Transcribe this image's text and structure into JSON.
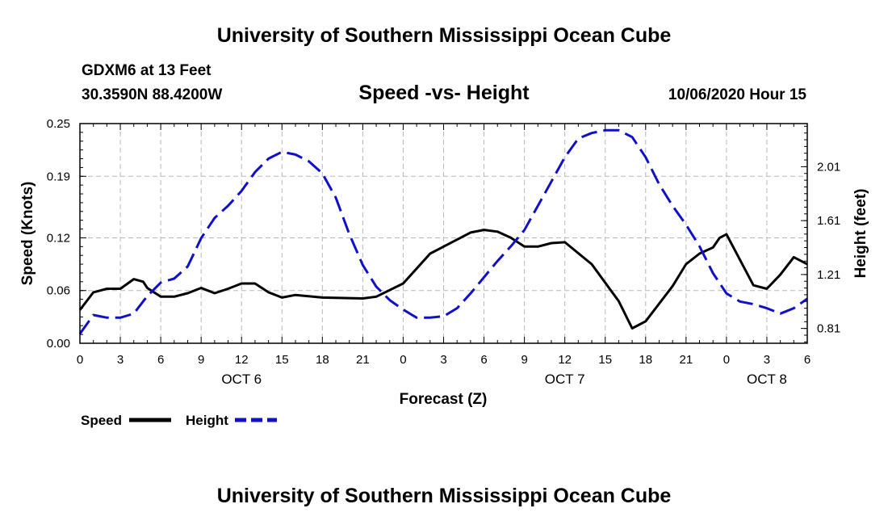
{
  "page": {
    "title_top": "University of Southern Mississippi Ocean Cube",
    "title_bottom": "University of Southern Mississippi Ocean Cube",
    "station": "GDXM6 at 13 Feet",
    "location": "30.3590N 88.4200W",
    "subtitle": "Speed -vs- Height",
    "datetime": "10/06/2020 Hour 15"
  },
  "colors": {
    "speed": "#000000",
    "height": "#1010c8",
    "grid": "#b8b8b8"
  },
  "chart_data": {
    "type": "line",
    "title": "Speed -vs- Height",
    "xlabel": "Forecast (Z)",
    "ylabel": "Speed (Knots)",
    "y2label": "Height (feet)",
    "xlim": [
      0,
      54
    ],
    "ylim": [
      0,
      0.25
    ],
    "y2lim": [
      0.7,
      2.33
    ],
    "grid": true,
    "x_tick_positions": [
      0,
      3,
      6,
      9,
      12,
      15,
      18,
      21,
      24,
      27,
      30,
      33,
      36,
      39,
      42,
      45,
      48,
      51,
      54
    ],
    "x_tick_labels": [
      "0",
      "3",
      "6",
      "9",
      "12",
      "15",
      "18",
      "21",
      "0",
      "3",
      "6",
      "9",
      "12",
      "15",
      "18",
      "21",
      "0",
      "3",
      "6"
    ],
    "y_ticks": [
      0,
      0.06,
      0.12,
      0.19,
      0.25
    ],
    "y_tick_labels": [
      "0.00",
      "0.06",
      "0.12",
      "0.19",
      "0.25"
    ],
    "y2_ticks": [
      0.81,
      1.21,
      1.61,
      2.01
    ],
    "y2_tick_labels": [
      "0.81",
      "1.21",
      "1.61",
      "2.01"
    ],
    "day_labels": [
      {
        "x": 12,
        "label": "OCT 6"
      },
      {
        "x": 36,
        "label": "OCT 7"
      },
      {
        "x": 51,
        "label": "OCT 8"
      }
    ],
    "legend_position": "bottom-left",
    "series": [
      {
        "name": "Speed",
        "axis": "left",
        "style": "solid",
        "x": [
          0,
          1,
          2,
          3,
          4,
          4.7,
          5,
          6,
          7,
          8,
          9,
          10,
          11,
          12,
          13,
          14,
          15,
          16,
          18,
          21,
          22,
          24,
          26,
          27,
          29,
          30,
          31,
          32,
          33,
          34,
          35,
          36,
          38,
          40,
          41,
          42,
          43,
          44,
          45,
          46,
          47,
          47.5,
          48,
          50,
          51,
          52,
          53,
          54
        ],
        "y": [
          0.038,
          0.058,
          0.062,
          0.062,
          0.073,
          0.07,
          0.063,
          0.053,
          0.053,
          0.057,
          0.063,
          0.057,
          0.062,
          0.068,
          0.068,
          0.058,
          0.052,
          0.055,
          0.052,
          0.051,
          0.053,
          0.068,
          0.102,
          0.11,
          0.126,
          0.129,
          0.127,
          0.12,
          0.11,
          0.11,
          0.114,
          0.115,
          0.09,
          0.048,
          0.017,
          0.025,
          0.045,
          0.065,
          0.09,
          0.102,
          0.109,
          0.12,
          0.124,
          0.066,
          0.062,
          0.078,
          0.098,
          0.09
        ]
      },
      {
        "name": "Height",
        "axis": "right",
        "style": "dashed",
        "x": [
          0,
          1,
          2,
          3,
          4,
          5,
          6,
          7,
          8,
          9,
          10,
          11,
          12,
          13,
          14,
          15,
          16,
          17,
          18,
          19,
          20,
          21,
          22,
          23,
          24,
          25,
          26,
          27,
          28,
          29,
          30,
          31,
          32,
          33,
          34,
          35,
          36,
          37,
          38,
          39,
          40,
          41,
          42,
          43,
          44,
          45,
          46,
          47,
          48,
          49,
          50,
          51,
          52,
          53,
          54
        ],
        "y": [
          0.77,
          0.91,
          0.89,
          0.89,
          0.92,
          1.05,
          1.15,
          1.18,
          1.27,
          1.48,
          1.63,
          1.72,
          1.83,
          1.97,
          2.07,
          2.12,
          2.1,
          2.05,
          1.96,
          1.78,
          1.51,
          1.28,
          1.12,
          1.02,
          0.95,
          0.89,
          0.89,
          0.9,
          0.96,
          1.07,
          1.19,
          1.31,
          1.42,
          1.54,
          1.72,
          1.9,
          2.08,
          2.22,
          2.26,
          2.28,
          2.28,
          2.23,
          2.08,
          1.88,
          1.72,
          1.58,
          1.42,
          1.22,
          1.07,
          1.01,
          0.99,
          0.96,
          0.92,
          0.96,
          1.03
        ]
      }
    ]
  }
}
